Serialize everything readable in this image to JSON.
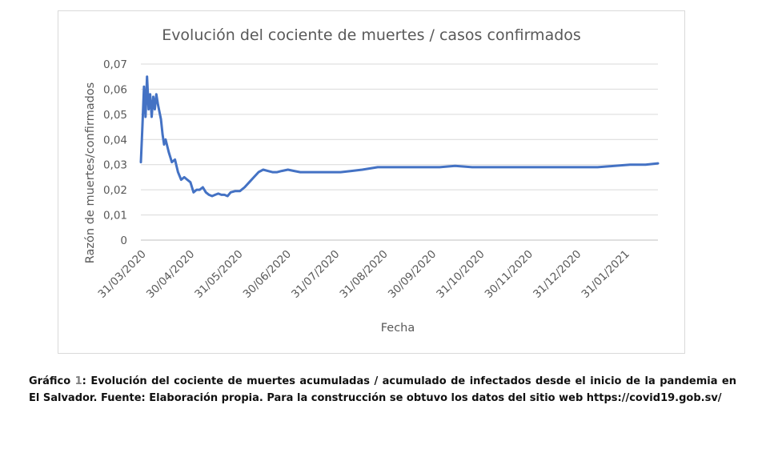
{
  "chart_data": {
    "type": "line",
    "title": "Evolución del cociente de muertes / casos confirmados",
    "xlabel": "Fecha",
    "ylabel": "Razón de muertes/confirmados",
    "x_tick_labels": [
      "31/03/2020",
      "30/04/2020",
      "31/05/2020",
      "30/06/2020",
      "31/07/2020",
      "31/08/2020",
      "30/09/2020",
      "31/10/2020",
      "30/11/2020",
      "31/12/2020",
      "31/01/2021"
    ],
    "y_tick_labels": [
      "0",
      "0,01",
      "0,02",
      "0,03",
      "0,04",
      "0,05",
      "0,06",
      "0,07"
    ],
    "ylim": [
      0,
      0.07
    ],
    "xlim": [
      "2020-03-31",
      "2021-02-28"
    ],
    "grid": true,
    "line_color": "#4472c4",
    "series": [
      {
        "x": [
          "2020-03-31",
          "2020-04-01",
          "2020-04-02",
          "2020-04-03",
          "2020-04-04",
          "2020-04-05",
          "2020-04-06",
          "2020-04-07",
          "2020-04-08",
          "2020-04-09",
          "2020-04-10",
          "2020-04-11",
          "2020-04-12",
          "2020-04-13",
          "2020-04-14",
          "2020-04-15",
          "2020-04-16",
          "2020-04-18",
          "2020-04-20",
          "2020-04-22",
          "2020-04-24",
          "2020-04-26",
          "2020-04-28",
          "2020-04-30",
          "2020-05-02",
          "2020-05-04",
          "2020-05-06",
          "2020-05-08",
          "2020-05-10",
          "2020-05-12",
          "2020-05-14",
          "2020-05-16",
          "2020-05-18",
          "2020-05-20",
          "2020-05-22",
          "2020-05-24",
          "2020-05-26",
          "2020-05-28",
          "2020-05-31",
          "2020-06-03",
          "2020-06-06",
          "2020-06-09",
          "2020-06-12",
          "2020-06-15",
          "2020-06-18",
          "2020-06-21",
          "2020-06-24",
          "2020-06-27",
          "2020-06-30",
          "2020-07-04",
          "2020-07-08",
          "2020-07-12",
          "2020-07-16",
          "2020-07-20",
          "2020-07-24",
          "2020-07-31",
          "2020-08-07",
          "2020-08-14",
          "2020-08-21",
          "2020-08-31",
          "2020-09-10",
          "2020-09-20",
          "2020-09-30",
          "2020-10-10",
          "2020-10-20",
          "2020-10-31",
          "2020-11-10",
          "2020-11-20",
          "2020-11-30",
          "2020-12-10",
          "2020-12-20",
          "2020-12-31",
          "2021-01-10",
          "2021-01-20",
          "2021-01-31",
          "2021-02-10",
          "2021-02-20",
          "2021-02-28"
        ],
        "y": [
          0.031,
          0.045,
          0.061,
          0.049,
          0.065,
          0.052,
          0.058,
          0.049,
          0.057,
          0.052,
          0.058,
          0.054,
          0.051,
          0.048,
          0.042,
          0.038,
          0.04,
          0.035,
          0.031,
          0.032,
          0.027,
          0.024,
          0.025,
          0.024,
          0.023,
          0.019,
          0.02,
          0.02,
          0.021,
          0.019,
          0.018,
          0.0175,
          0.018,
          0.0185,
          0.018,
          0.018,
          0.0175,
          0.019,
          0.0195,
          0.0195,
          0.021,
          0.023,
          0.025,
          0.027,
          0.028,
          0.0275,
          0.027,
          0.027,
          0.0275,
          0.028,
          0.0275,
          0.027,
          0.027,
          0.027,
          0.027,
          0.027,
          0.027,
          0.0275,
          0.028,
          0.029,
          0.029,
          0.029,
          0.029,
          0.029,
          0.0295,
          0.029,
          0.029,
          0.029,
          0.029,
          0.029,
          0.029,
          0.029,
          0.029,
          0.029,
          0.0295,
          0.03,
          0.03,
          0.0305
        ]
      }
    ]
  },
  "caption": {
    "prefix": "Gráfico ",
    "number": "1",
    "text": ": Evolución del cociente de muertes acumuladas / acumulado de infectados desde el inicio de la pandemia en El Salvador. Fuente: Elaboración propia. Para la construcción se obtuvo los datos del sitio web https://covid19.gob.sv/"
  }
}
